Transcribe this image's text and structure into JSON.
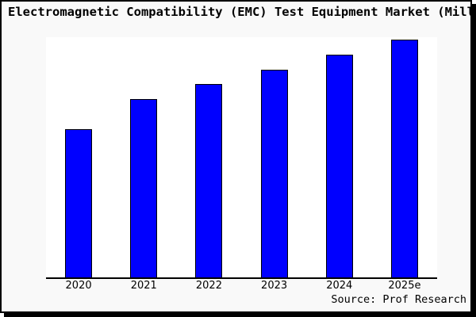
{
  "title": "Electromagnetic Compatibility (EMC) Test Equipment Market (Million",
  "source": "Source: Prof Research",
  "colors": {
    "figure_background": "#f9f9f9",
    "plot_background": "#ffffff",
    "bar_fill": "#0000ff",
    "bar_border": "#000000",
    "frame": "#000000"
  },
  "chart_data": {
    "type": "bar",
    "title": "Electromagnetic Compatibility (EMC) Test Equipment Market (Million",
    "categories": [
      "2020",
      "2021",
      "2022",
      "2023",
      "2024",
      "2025e"
    ],
    "values": [
      100,
      120,
      130,
      140,
      150,
      160
    ],
    "values_note": "y-axis has no ticks or labels; values are relative estimates read from bar heights (2020 indexed to 100)",
    "xlabel": "",
    "ylabel": "",
    "ylim": [
      0,
      160
    ],
    "grid": false,
    "legend": "none",
    "annotations": [
      "Source: Prof Research"
    ]
  }
}
